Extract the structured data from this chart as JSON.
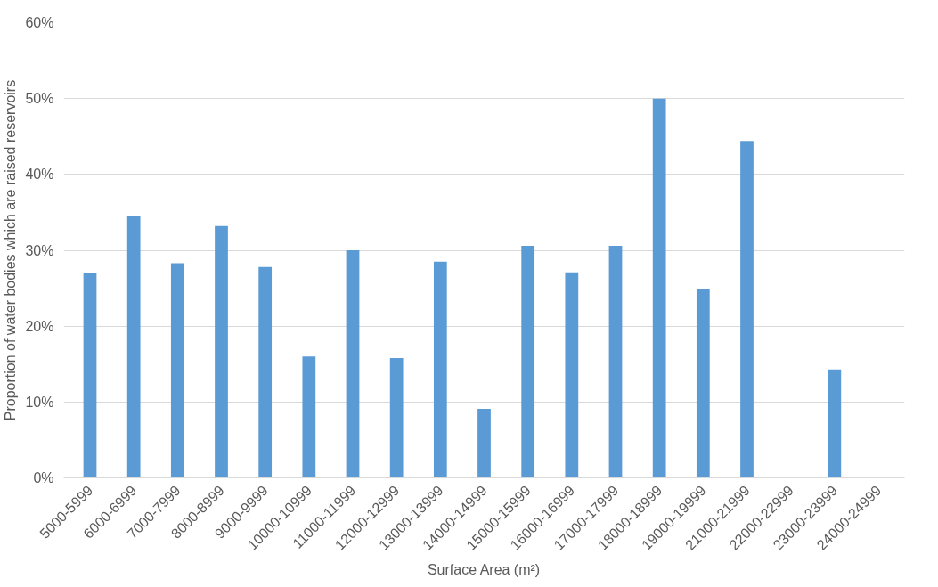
{
  "chart_data": {
    "type": "bar",
    "xlabel": "Surface Area (m²)",
    "ylabel": "Proportion of water bodies which are raised reservoirs",
    "categories": [
      "5000-5999",
      "6000-6999",
      "7000-7999",
      "8000-8999",
      "9000-9999",
      "10000-10999",
      "11000-11999",
      "12000-12999",
      "13000-13999",
      "14000-14999",
      "15000-15999",
      "16000-16999",
      "17000-17999",
      "18000-18999",
      "19000-19999",
      "21000-21999",
      "22000-22999",
      "23000-23999",
      "24000-24999"
    ],
    "values": [
      27.0,
      34.5,
      28.3,
      33.2,
      27.8,
      16.0,
      30.0,
      15.8,
      28.5,
      9.1,
      30.6,
      27.1,
      30.6,
      50.0,
      24.9,
      44.4,
      0,
      14.3,
      0
    ],
    "color": "#5b9bd5",
    "ylim": [
      0,
      60
    ],
    "yticks": [
      {
        "value": 0,
        "label": "0%"
      },
      {
        "value": 10,
        "label": "10%"
      },
      {
        "value": 20,
        "label": "20%"
      },
      {
        "value": 30,
        "label": "30%"
      },
      {
        "value": 40,
        "label": "40%"
      },
      {
        "value": 50,
        "label": "50%"
      },
      {
        "value": 60,
        "label": "60%"
      }
    ],
    "grid": "y"
  }
}
